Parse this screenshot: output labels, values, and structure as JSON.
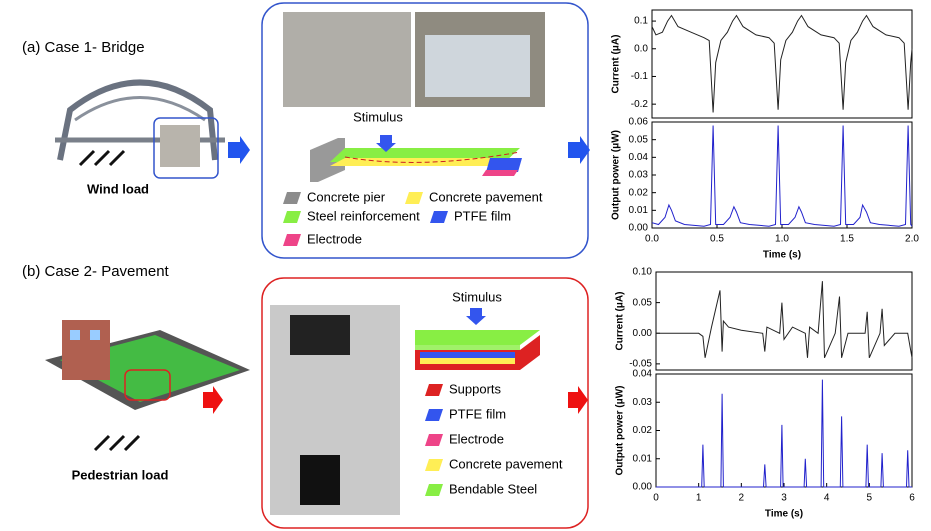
{
  "panels": [
    {
      "label": "(a) Case 1- Bridge",
      "load": "Wind load",
      "stimulus": "Stimulus",
      "legend": [
        {
          "label": "Concrete pier",
          "color": "#8c8c8c"
        },
        {
          "label": "Concrete pavement",
          "color": "#ffee55"
        },
        {
          "label": "Steel reinforcement",
          "color": "#88ee44"
        },
        {
          "label": "PTFE film",
          "color": "#3355ee"
        },
        {
          "label": "Electrode",
          "color": "#ee4488"
        }
      ]
    },
    {
      "label": "(b) Case 2- Pavement",
      "load": "Pedestrian load",
      "stimulus": "Stimulus",
      "legend": [
        {
          "label": "Supports",
          "color": "#dd2222"
        },
        {
          "label": "PTFE film",
          "color": "#3355ee"
        },
        {
          "label": "Electrode",
          "color": "#ee4488"
        },
        {
          "label": "Concrete pavement",
          "color": "#ffee55"
        },
        {
          "label": "Bendable Steel",
          "color": "#88ee44"
        }
      ]
    }
  ],
  "chart_data": [
    {
      "type": "line",
      "y_label": "Current (μA)",
      "color": "#222222",
      "xlim": [
        0,
        2
      ],
      "ylim": [
        -0.25,
        0.14
      ],
      "yticks": [
        -0.2,
        -0.1,
        {
          "value": 0,
          "label": "0.0"
        },
        0.1
      ],
      "x": [
        0,
        0.03,
        0.08,
        0.12,
        0.15,
        0.2,
        0.3,
        0.4,
        0.44,
        0.47,
        0.49,
        0.53,
        0.58,
        0.62,
        0.65,
        0.7,
        0.8,
        0.9,
        0.94,
        0.97,
        0.99,
        1.03,
        1.08,
        1.12,
        1.15,
        1.2,
        1.3,
        1.4,
        1.44,
        1.47,
        1.49,
        1.53,
        1.58,
        1.62,
        1.65,
        1.7,
        1.8,
        1.9,
        1.94,
        1.97,
        1.99,
        2.0
      ],
      "values": [
        0.08,
        0.05,
        0.06,
        0.1,
        0.12,
        0.08,
        0.06,
        0.04,
        0.03,
        -0.23,
        -0.05,
        0.03,
        0.06,
        0.1,
        0.12,
        0.08,
        0.05,
        0.04,
        0.02,
        -0.22,
        -0.04,
        0.03,
        0.06,
        0.1,
        0.12,
        0.08,
        0.05,
        0.04,
        0.02,
        -0.22,
        -0.05,
        0.03,
        0.06,
        0.1,
        0.12,
        0.08,
        0.05,
        0.04,
        0.02,
        -0.22,
        -0.05,
        0.0
      ]
    },
    {
      "type": "line",
      "y_label": "Output power (μW)",
      "x_label": "Time (s)",
      "color": "#2222cc",
      "xlim": [
        0,
        2
      ],
      "ylim": [
        0,
        0.06
      ],
      "xticks": [
        {
          "value": 0,
          "label": "0.0"
        },
        0.5,
        {
          "value": 1,
          "label": "1.0"
        },
        1.5,
        {
          "value": 2,
          "label": "2.0"
        }
      ],
      "yticks": [
        {
          "value": 0,
          "label": "0.00"
        },
        {
          "value": 0.01,
          "label": "0.01"
        },
        {
          "value": 0.02,
          "label": "0.02"
        },
        {
          "value": 0.03,
          "label": "0.03"
        },
        {
          "value": 0.04,
          "label": "0.04"
        },
        {
          "value": 0.05,
          "label": "0.05"
        },
        {
          "value": 0.06,
          "label": "0.06"
        }
      ],
      "x": [
        0,
        0.05,
        0.1,
        0.13,
        0.15,
        0.18,
        0.25,
        0.4,
        0.45,
        0.47,
        0.49,
        0.55,
        0.6,
        0.63,
        0.65,
        0.68,
        0.75,
        0.9,
        0.95,
        0.97,
        0.99,
        1.05,
        1.1,
        1.13,
        1.15,
        1.18,
        1.25,
        1.4,
        1.45,
        1.47,
        1.49,
        1.55,
        1.6,
        1.62,
        1.65,
        1.68,
        1.75,
        1.9,
        1.95,
        1.97,
        1.99,
        2.0
      ],
      "values": [
        0.003,
        0.002,
        0.006,
        0.013,
        0.01,
        0.004,
        0.002,
        0.001,
        0.002,
        0.058,
        0.002,
        0.002,
        0.006,
        0.012,
        0.009,
        0.003,
        0.002,
        0.001,
        0.002,
        0.058,
        0.002,
        0.002,
        0.006,
        0.012,
        0.009,
        0.003,
        0.002,
        0.001,
        0.002,
        0.058,
        0.002,
        0.002,
        0.006,
        0.013,
        0.009,
        0.003,
        0.002,
        0.001,
        0.002,
        0.058,
        0.002,
        0.001
      ]
    },
    {
      "type": "line",
      "y_label": "Current (μA)",
      "color": "#222222",
      "xlim": [
        0,
        6
      ],
      "ylim": [
        -0.06,
        0.1
      ],
      "yticks": [
        -0.05,
        {
          "value": 0,
          "label": "0.00"
        },
        0.05,
        {
          "value": 0.1,
          "label": "0.10"
        }
      ],
      "x": [
        0,
        0.5,
        1.0,
        1.1,
        1.15,
        1.3,
        1.5,
        1.55,
        1.58,
        1.7,
        2.0,
        2.5,
        2.55,
        2.6,
        2.9,
        2.95,
        3.0,
        3.2,
        3.5,
        3.55,
        3.6,
        3.8,
        3.9,
        3.95,
        4.2,
        4.3,
        4.35,
        4.5,
        4.9,
        4.95,
        5.0,
        5.25,
        5.3,
        5.35,
        5.6,
        5.9,
        6.0
      ],
      "values": [
        0,
        0,
        0,
        -0.005,
        -0.04,
        0.01,
        0.07,
        -0.03,
        0.02,
        0.01,
        0.005,
        0.0,
        -0.03,
        0.01,
        0.0,
        0.05,
        -0.01,
        0.01,
        0.0,
        -0.04,
        0.01,
        0.0,
        0.085,
        -0.04,
        0.0,
        0.06,
        -0.04,
        0.0,
        0.0,
        0.035,
        -0.04,
        0.0,
        0.04,
        -0.02,
        0.0,
        0.0,
        -0.04
      ]
    },
    {
      "type": "line",
      "y_label": "Output power (μW)",
      "x_label": "Time (s)",
      "color": "#2222cc",
      "xlim": [
        0,
        6
      ],
      "ylim": [
        0,
        0.04
      ],
      "xticks": [
        0,
        1,
        2,
        3,
        4,
        5,
        6
      ],
      "yticks": [
        {
          "value": 0,
          "label": "0.00"
        },
        {
          "value": 0.01,
          "label": "0.01"
        },
        {
          "value": 0.02,
          "label": "0.02"
        },
        {
          "value": 0.03,
          "label": "0.03"
        },
        {
          "value": 0.04,
          "label": "0.04"
        }
      ],
      "x": [
        0,
        1.07,
        1.1,
        1.13,
        1.52,
        1.55,
        1.58,
        2.52,
        2.55,
        2.58,
        2.92,
        2.95,
        2.98,
        3.47,
        3.5,
        3.53,
        3.87,
        3.9,
        3.93,
        4.32,
        4.35,
        4.38,
        4.92,
        4.95,
        4.98,
        5.27,
        5.3,
        5.33,
        5.87,
        5.9,
        5.93,
        6.0
      ],
      "values": [
        0,
        0,
        0.015,
        0,
        0,
        0.033,
        0,
        0,
        0.008,
        0,
        0,
        0.022,
        0,
        0,
        0.01,
        0,
        0,
        0.038,
        0,
        0,
        0.025,
        0,
        0,
        0.015,
        0,
        0,
        0.012,
        0,
        0,
        0.013,
        0,
        0
      ]
    }
  ]
}
